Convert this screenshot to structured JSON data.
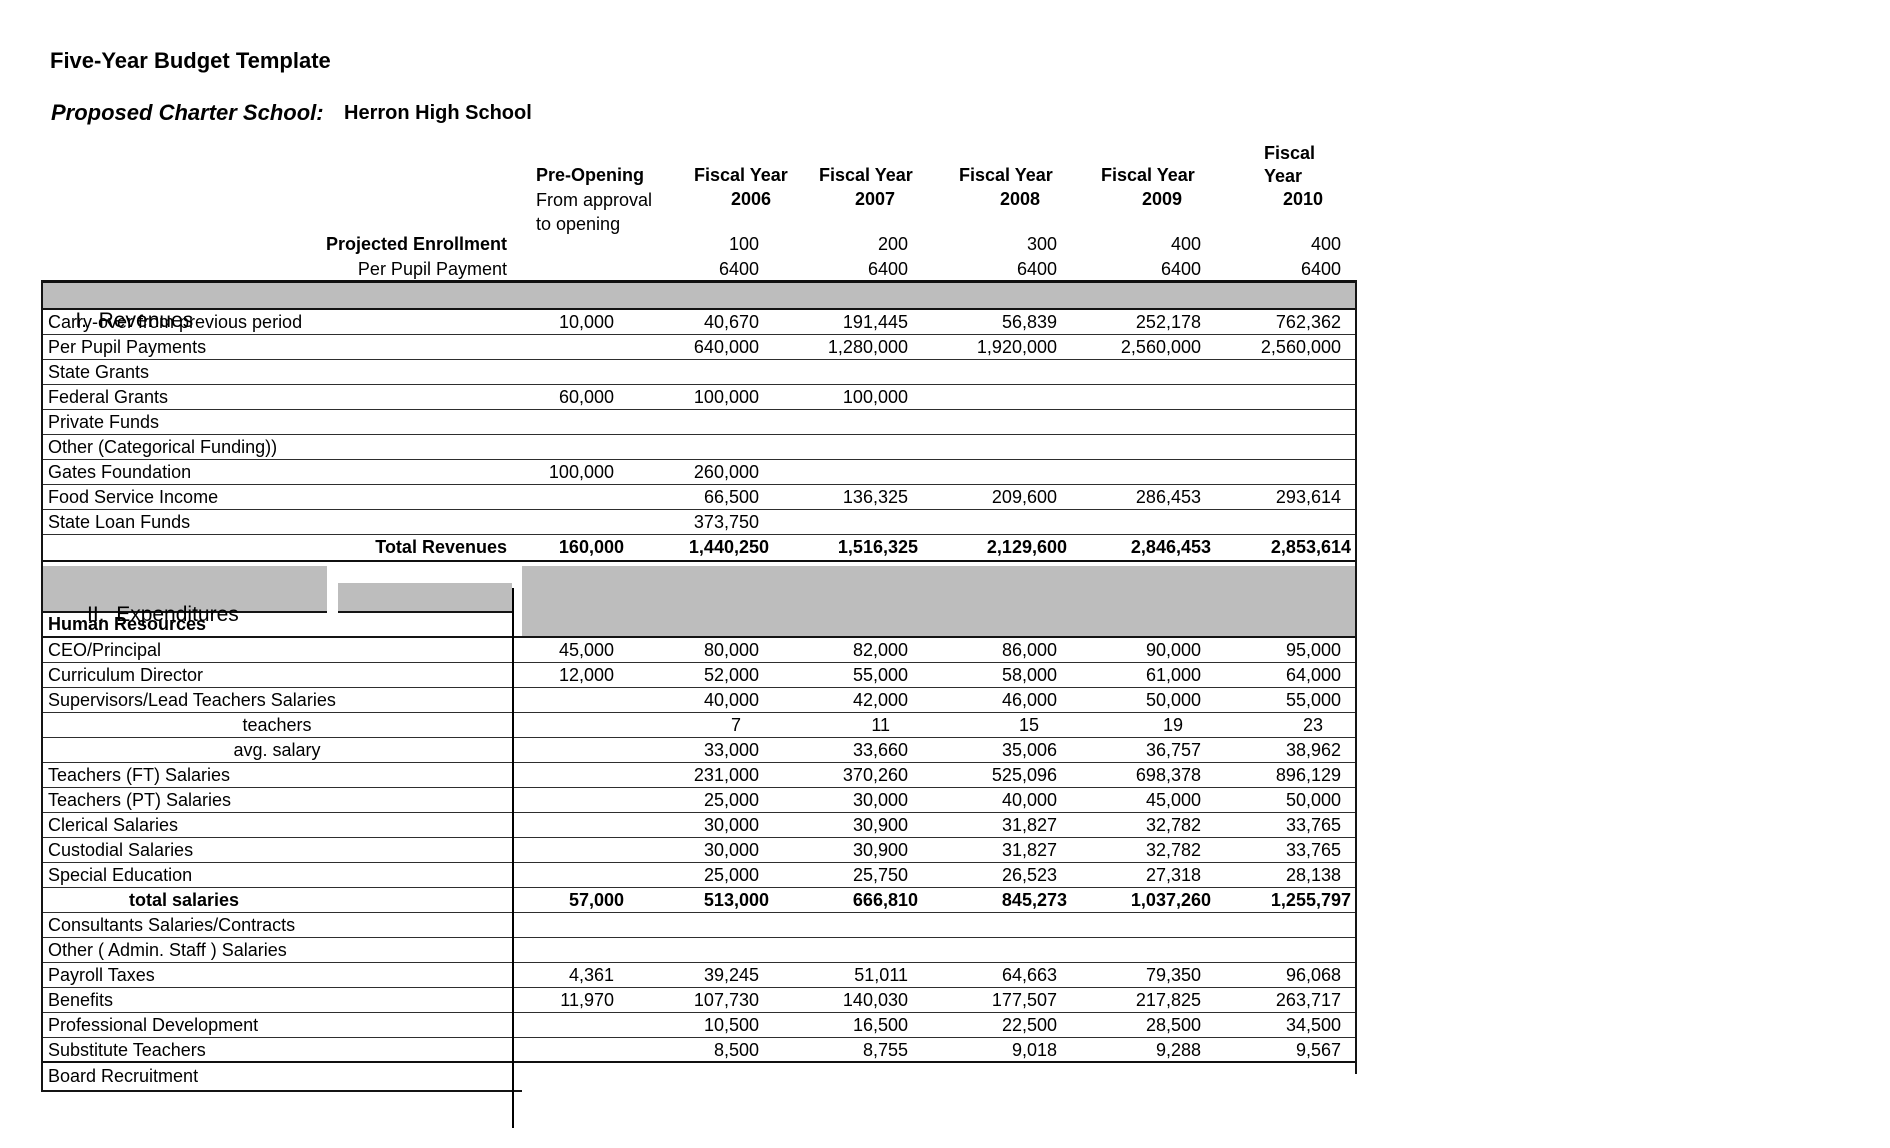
{
  "page": {
    "title": "Five-Year Budget Template",
    "school_label": "Proposed Charter School:",
    "school_name": "Herron High School"
  },
  "table": {
    "columns": [
      {
        "id": "pre-opening",
        "line1": "Pre-Opening",
        "line2": "From approval",
        "line3": "to opening"
      },
      {
        "id": "fy2006",
        "line1": "Fiscal Year",
        "line2": "2006"
      },
      {
        "id": "fy2007",
        "line1": "Fiscal Year",
        "line2": "2007"
      },
      {
        "id": "fy2008",
        "line1": "Fiscal Year",
        "line2": "2008"
      },
      {
        "id": "fy2009",
        "line1": "Fiscal Year",
        "line2": "2009"
      },
      {
        "id": "fy2010",
        "line1": "Fiscal",
        "line2": "Year",
        "line3": "2010"
      }
    ],
    "enrollment_rows": [
      {
        "label": "Projected Enrollment",
        "align": "right",
        "label_bold": true,
        "values": [
          "",
          "100",
          "200",
          "300",
          "400",
          "400"
        ]
      },
      {
        "label": "Per Pupil Payment",
        "align": "right",
        "values": [
          "",
          "6400",
          "6400",
          "6400",
          "6400",
          "6400"
        ]
      }
    ],
    "sections": [
      {
        "id": "revenues",
        "title": "I.  Revenues",
        "rows": [
          {
            "label": "Carry-over from previous period",
            "values": [
              "10,000",
              "40,670",
              "191,445",
              "56,839",
              "252,178",
              "762,362"
            ]
          },
          {
            "label": "Per Pupil Payments",
            "values": [
              "",
              "640,000",
              "1,280,000",
              "1,920,000",
              "2,560,000",
              "2,560,000"
            ]
          },
          {
            "label": "State Grants",
            "values": [
              "",
              "",
              "",
              "",
              "",
              ""
            ]
          },
          {
            "label": "Federal Grants",
            "values": [
              "60,000",
              "100,000",
              "100,000",
              "",
              "",
              ""
            ]
          },
          {
            "label": "Private Funds",
            "values": [
              "",
              "",
              "",
              "",
              "",
              ""
            ]
          },
          {
            "label": "Other (Categorical Funding))",
            "values": [
              "",
              "",
              "",
              "",
              "",
              ""
            ]
          },
          {
            "label": "Gates Foundation",
            "values": [
              "100,000",
              "260,000",
              "",
              "",
              "",
              ""
            ]
          },
          {
            "label": "Food Service Income",
            "values": [
              "",
              "66,500",
              "136,325",
              "209,600",
              "286,453",
              "293,614"
            ]
          },
          {
            "label": "State Loan Funds",
            "values": [
              "",
              "373,750",
              "",
              "",
              "",
              ""
            ]
          },
          {
            "label": "Total Revenues",
            "align": "right",
            "label_bold": true,
            "values_bold": true,
            "total": true,
            "values": [
              "160,000",
              "1,440,250",
              "1,516,325",
              "2,129,600",
              "2,846,453",
              "2,853,614"
            ]
          }
        ]
      },
      {
        "id": "expenditures",
        "title": "II.  Expenditures",
        "subsection": "Human Resources",
        "rows": [
          {
            "label": "CEO/Principal",
            "values": [
              "45,000",
              "80,000",
              "82,000",
              "86,000",
              "90,000",
              "95,000"
            ]
          },
          {
            "label": "Curriculum Director",
            "values": [
              "12,000",
              "52,000",
              "55,000",
              "58,000",
              "61,000",
              "64,000"
            ]
          },
          {
            "label": "Supervisors/Lead Teachers Salaries",
            "values": [
              "",
              "40,000",
              "42,000",
              "46,000",
              "50,000",
              "55,000"
            ]
          },
          {
            "label": "teachers",
            "align": "center",
            "vpad": 34,
            "values": [
              "",
              "7",
              "11",
              "15",
              "19",
              "23"
            ]
          },
          {
            "label": "avg. salary",
            "align": "center",
            "values": [
              "",
              "33,000",
              "33,660",
              "35,006",
              "36,757",
              "38,962"
            ]
          },
          {
            "label": "Teachers (FT) Salaries",
            "values": [
              "",
              "231,000",
              "370,260",
              "525,096",
              "698,378",
              "896,129"
            ]
          },
          {
            "label": "Teachers (PT) Salaries",
            "values": [
              "",
              "25,000",
              "30,000",
              "40,000",
              "45,000",
              "50,000"
            ]
          },
          {
            "label": "Clerical Salaries",
            "values": [
              "",
              "30,000",
              "30,900",
              "31,827",
              "32,782",
              "33,765"
            ]
          },
          {
            "label": "Custodial Salaries",
            "values": [
              "",
              "30,000",
              "30,900",
              "31,827",
              "32,782",
              "33,765"
            ]
          },
          {
            "label": "Special Education",
            "values": [
              "",
              "25,000",
              "25,750",
              "26,523",
              "27,318",
              "28,138"
            ]
          },
          {
            "label": "total salaries",
            "align": "centera",
            "label_bold": true,
            "values_bold": true,
            "values": [
              "57,000",
              "513,000",
              "666,810",
              "845,273",
              "1,037,260",
              "1,255,797"
            ]
          },
          {
            "label": "Consultants Salaries/Contracts",
            "values": [
              "",
              "",
              "",
              "",
              "",
              ""
            ]
          },
          {
            "label": "Other ( Admin. Staff ) Salaries",
            "values": [
              "",
              "",
              "",
              "",
              "",
              ""
            ]
          },
          {
            "label": "Payroll Taxes",
            "values": [
              "4,361",
              "39,245",
              "51,011",
              "64,663",
              "79,350",
              "96,068"
            ]
          },
          {
            "label": "Benefits",
            "values": [
              "11,970",
              "107,730",
              "140,030",
              "177,507",
              "217,825",
              "263,717"
            ]
          },
          {
            "label": "Professional Development",
            "values": [
              "",
              "10,500",
              "16,500",
              "22,500",
              "28,500",
              "34,500"
            ]
          },
          {
            "label": "Substitute Teachers",
            "values": [
              "",
              "8,500",
              "8,755",
              "9,018",
              "9,288",
              "9,567"
            ]
          },
          {
            "label": "Board Recruitment",
            "label_only": true
          }
        ]
      }
    ]
  }
}
